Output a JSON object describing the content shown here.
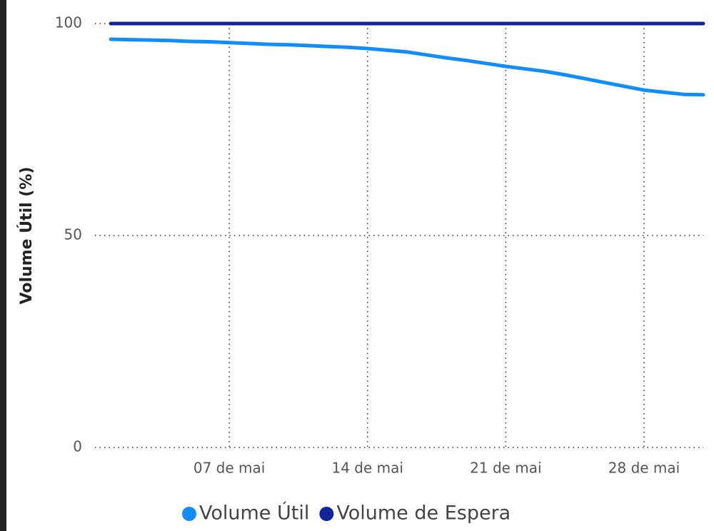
{
  "chart_data": {
    "type": "line",
    "ylabel": "Volume Útil (%)",
    "x": [
      1,
      2,
      3,
      4,
      5,
      6,
      7,
      8,
      9,
      10,
      11,
      12,
      13,
      14,
      15,
      16,
      17,
      18,
      19,
      20,
      21,
      22,
      23,
      24,
      25,
      26,
      27,
      28,
      29,
      30,
      31
    ],
    "series": [
      {
        "name": "Volume Útil",
        "color": "#118dff",
        "values": [
          96.3,
          96.2,
          96.1,
          96.0,
          95.8,
          95.7,
          95.5,
          95.3,
          95.1,
          95.0,
          94.8,
          94.6,
          94.4,
          94.1,
          93.7,
          93.3,
          92.6,
          91.9,
          91.3,
          90.6,
          89.9,
          89.3,
          88.7,
          87.9,
          87.0,
          86.1,
          85.2,
          84.3,
          83.8,
          83.3,
          83.2
        ]
      },
      {
        "name": "Volume de Espera",
        "color": "#12239e",
        "values": [
          100,
          100,
          100,
          100,
          100,
          100,
          100,
          100,
          100,
          100,
          100,
          100,
          100,
          100,
          100,
          100,
          100,
          100,
          100,
          100,
          100,
          100,
          100,
          100,
          100,
          100,
          100,
          100,
          100,
          100,
          100
        ]
      }
    ],
    "xlim": [
      0.2,
      31
    ],
    "xticks": [
      {
        "value": 7,
        "label": "07 de mai"
      },
      {
        "value": 14,
        "label": "14 de mai"
      },
      {
        "value": 21,
        "label": "21 de mai"
      },
      {
        "value": 28,
        "label": "28 de mai"
      }
    ],
    "ylim": [
      0,
      100
    ],
    "yticks": [
      0,
      50,
      100
    ],
    "grid": true,
    "legend": "bottom"
  }
}
